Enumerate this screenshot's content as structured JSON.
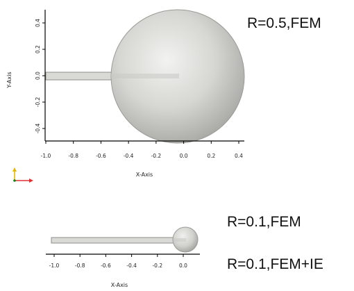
{
  "captions": {
    "top": "R=0.5,FEM",
    "middle": "R=0.1,FEM",
    "bottom": "R=0.1,FEM+IE"
  },
  "top_plot": {
    "xlabel": "X-Axis",
    "ylabel": "Y-Axis",
    "xticks": [
      "-1.0",
      "-0.8",
      "-0.6",
      "-0.4",
      "-0.2",
      "0.0",
      "0.2",
      "0.4"
    ],
    "yticks": [
      "0.4",
      "0.2",
      "0.0",
      "-0.2",
      "-0.4"
    ]
  },
  "bottom_plot": {
    "xlabel": "X-Axis",
    "xticks": [
      "-1.0",
      "-0.8",
      "-0.6",
      "-0.4",
      "-0.2",
      "0.0"
    ]
  },
  "colors": {
    "sphere": "#c8c8c4",
    "rod": "#d9d9d6",
    "triad_y": "#e8b800",
    "triad_x": "#e03030",
    "triad_z": "#118811"
  }
}
